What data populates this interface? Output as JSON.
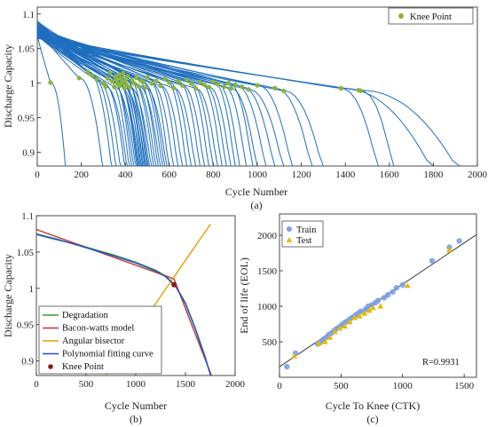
{
  "figure": {
    "panels": [
      {
        "id": "a",
        "caption": "(a)",
        "chart_data": {
          "type": "line",
          "xlabel": "Cycle Number",
          "ylabel": "Discharge Capacity",
          "xlim": [
            0,
            2000
          ],
          "ylim": [
            0.88,
            1.11
          ],
          "xticks": [
            0,
            200,
            400,
            600,
            800,
            1000,
            1200,
            1400,
            1600,
            1800,
            2000
          ],
          "yticks": [
            0.9,
            0.95,
            1,
            1.05,
            1.1
          ],
          "ytick_labels": [
            "0.9",
            "0.95",
            "1",
            "1.05",
            "1.1"
          ],
          "grid": false,
          "legend": {
            "position": "top-right",
            "entries": [
              "Knee Point"
            ]
          },
          "line_color": "#1f6fbf",
          "knee_color": "#8ab43a",
          "curves": [
            {
              "eol": 130,
              "knee": 60,
              "y0": 1.07
            },
            {
              "eol": 300,
              "knee": 190,
              "y0": 1.08
            },
            {
              "eol": 340,
              "knee": 230,
              "y0": 1.09
            },
            {
              "eol": 360,
              "knee": 250,
              "y0": 1.085
            },
            {
              "eol": 380,
              "knee": 270,
              "y0": 1.08
            },
            {
              "eol": 400,
              "knee": 300,
              "y0": 1.075
            },
            {
              "eol": 410,
              "knee": 310,
              "y0": 1.07
            },
            {
              "eol": 420,
              "knee": 320,
              "y0": 1.082
            },
            {
              "eol": 430,
              "knee": 330,
              "y0": 1.09
            },
            {
              "eol": 440,
              "knee": 340,
              "y0": 1.078
            },
            {
              "eol": 450,
              "knee": 350,
              "y0": 1.07
            },
            {
              "eol": 455,
              "knee": 355,
              "y0": 1.085
            },
            {
              "eol": 460,
              "knee": 360,
              "y0": 1.08
            },
            {
              "eol": 465,
              "knee": 365,
              "y0": 1.075
            },
            {
              "eol": 470,
              "knee": 370,
              "y0": 1.088
            },
            {
              "eol": 475,
              "knee": 375,
              "y0": 1.072
            },
            {
              "eol": 480,
              "knee": 380,
              "y0": 1.083
            },
            {
              "eol": 485,
              "knee": 385,
              "y0": 1.077
            },
            {
              "eol": 490,
              "knee": 390,
              "y0": 1.09
            },
            {
              "eol": 495,
              "knee": 395,
              "y0": 1.069
            },
            {
              "eol": 500,
              "knee": 400,
              "y0": 1.08
            },
            {
              "eol": 505,
              "knee": 405,
              "y0": 1.074
            },
            {
              "eol": 510,
              "knee": 410,
              "y0": 1.086
            },
            {
              "eol": 520,
              "knee": 420,
              "y0": 1.07
            },
            {
              "eol": 530,
              "knee": 430,
              "y0": 1.08
            },
            {
              "eol": 540,
              "knee": 440,
              "y0": 1.076
            },
            {
              "eol": 550,
              "knee": 450,
              "y0": 1.084
            },
            {
              "eol": 560,
              "knee": 460,
              "y0": 1.072
            },
            {
              "eol": 570,
              "knee": 470,
              "y0": 1.08
            },
            {
              "eol": 580,
              "knee": 480,
              "y0": 1.078
            },
            {
              "eol": 590,
              "knee": 490,
              "y0": 1.07
            },
            {
              "eol": 600,
              "knee": 500,
              "y0": 1.085
            },
            {
              "eol": 620,
              "knee": 520,
              "y0": 1.076
            },
            {
              "eol": 640,
              "knee": 540,
              "y0": 1.08
            },
            {
              "eol": 660,
              "knee": 560,
              "y0": 1.073
            },
            {
              "eol": 680,
              "knee": 580,
              "y0": 1.083
            },
            {
              "eol": 700,
              "knee": 600,
              "y0": 1.078
            },
            {
              "eol": 720,
              "knee": 620,
              "y0": 1.07
            },
            {
              "eol": 740,
              "knee": 640,
              "y0": 1.08
            },
            {
              "eol": 760,
              "knee": 660,
              "y0": 1.074
            },
            {
              "eol": 780,
              "knee": 680,
              "y0": 1.082
            },
            {
              "eol": 800,
              "knee": 700,
              "y0": 1.077
            },
            {
              "eol": 820,
              "knee": 720,
              "y0": 1.07
            },
            {
              "eol": 840,
              "knee": 740,
              "y0": 1.079
            },
            {
              "eol": 860,
              "knee": 760,
              "y0": 1.075
            },
            {
              "eol": 880,
              "knee": 780,
              "y0": 1.072
            },
            {
              "eol": 900,
              "knee": 800,
              "y0": 1.08
            },
            {
              "eol": 920,
              "knee": 820,
              "y0": 1.076
            },
            {
              "eol": 950,
              "knee": 850,
              "y0": 1.073
            },
            {
              "eol": 980,
              "knee": 870,
              "y0": 1.078
            },
            {
              "eol": 1000,
              "knee": 880,
              "y0": 1.07
            },
            {
              "eol": 1040,
              "knee": 900,
              "y0": 1.075
            },
            {
              "eol": 1080,
              "knee": 930,
              "y0": 1.072
            },
            {
              "eol": 1120,
              "knee": 960,
              "y0": 1.068
            },
            {
              "eol": 1160,
              "knee": 1000,
              "y0": 1.074
            },
            {
              "eol": 1250,
              "knee": 1080,
              "y0": 1.07
            },
            {
              "eol": 1300,
              "knee": 1120,
              "y0": 1.066
            },
            {
              "eol": 1550,
              "knee": 1380,
              "y0": 1.07
            },
            {
              "eol": 1620,
              "knee": 1470,
              "y0": 1.067
            },
            {
              "eol": 1800,
              "knee": 1380,
              "y0": 1.068
            },
            {
              "eol": 1920,
              "knee": 1460,
              "y0": 1.065
            }
          ]
        }
      },
      {
        "id": "b",
        "caption": "(b)",
        "chart_data": {
          "type": "line",
          "xlabel": "Cycle Number",
          "ylabel": "Discharge Capacity",
          "xlim": [
            0,
            2000
          ],
          "ylim": [
            0.88,
            1.1
          ],
          "xticks": [
            0,
            500,
            1000,
            1500,
            2000
          ],
          "yticks": [
            0.9,
            0.95,
            1,
            1.05,
            1.1
          ],
          "ytick_labels": [
            "0.9",
            "0.95",
            "1",
            "1.05",
            "1.1"
          ],
          "grid": false,
          "legend": {
            "position": "bottom-left"
          },
          "series": [
            {
              "name": "Degradation",
              "color": "#2ca02c",
              "x": [
                0,
                200,
                400,
                600,
                800,
                1000,
                1200,
                1300,
                1400,
                1500,
                1600,
                1700,
                1780
              ],
              "y": [
                1.074,
                1.067,
                1.061,
                1.053,
                1.045,
                1.036,
                1.025,
                1.017,
                1.004,
                0.98,
                0.945,
                0.905,
                0.868
              ]
            },
            {
              "name": "Bacon-watts model",
              "color": "#c0392b",
              "x": [
                0,
                1385,
                1790
              ],
              "y": [
                1.081,
                1.013,
                0.87
              ]
            },
            {
              "name": "Angular bisector",
              "color": "#e0a000",
              "x": [
                700,
                1750
              ],
              "y": [
                0.88,
                1.088
              ]
            },
            {
              "name": "Polynomial fitting curve",
              "color": "#1f4fd8",
              "x": [
                0,
                200,
                400,
                600,
                800,
                1000,
                1200,
                1300,
                1400,
                1500,
                1600,
                1700,
                1780
              ],
              "y": [
                1.075,
                1.068,
                1.06,
                1.052,
                1.044,
                1.035,
                1.024,
                1.016,
                1.003,
                0.979,
                0.944,
                0.904,
                0.868
              ]
            }
          ],
          "knee_point": {
            "name": "Knee Point",
            "x": 1385,
            "y": 1.005,
            "color": "#8b1a1a"
          }
        }
      },
      {
        "id": "c",
        "caption": "(c)",
        "chart_data": {
          "type": "scatter",
          "xlabel": "Cycle To Knee (CTK)",
          "ylabel": "End of life (EOL)",
          "xlim": [
            0,
            1600
          ],
          "ylim": [
            0,
            2300
          ],
          "xticks": [
            0,
            500,
            1000,
            1500
          ],
          "yticks": [
            500,
            1000,
            1500,
            2000
          ],
          "grid": false,
          "legend": {
            "position": "top-left"
          },
          "annotation": "R=0.9931",
          "fit_line": {
            "x": [
              0,
              1600
            ],
            "y": [
              148,
              2008
            ]
          },
          "series": [
            {
              "name": "Train",
              "color": "#7aa0e8",
              "marker": "circle",
              "points": [
                [
                  60,
                  150
                ],
                [
                  130,
                  340
                ],
                [
                  310,
                  470
                ],
                [
                  330,
                  490
                ],
                [
                  350,
                  520
                ],
                [
                  360,
                  540
                ],
                [
                  380,
                  560
                ],
                [
                  400,
                  600
                ],
                [
                  420,
                  620
                ],
                [
                  440,
                  650
                ],
                [
                  460,
                  680
                ],
                [
                  480,
                  700
                ],
                [
                  500,
                  730
                ],
                [
                  520,
                  760
                ],
                [
                  540,
                  780
                ],
                [
                  560,
                  800
                ],
                [
                  580,
                  830
                ],
                [
                  600,
                  850
                ],
                [
                  620,
                  880
                ],
                [
                  640,
                  900
                ],
                [
                  660,
                  930
                ],
                [
                  700,
                  960
                ],
                [
                  720,
                  1000
                ],
                [
                  750,
                  1020
                ],
                [
                  780,
                  1050
                ],
                [
                  800,
                  1080
                ],
                [
                  850,
                  1120
                ],
                [
                  880,
                  1160
                ],
                [
                  920,
                  1200
                ],
                [
                  950,
                  1260
                ],
                [
                  1000,
                  1300
                ],
                [
                  1240,
                  1640
                ],
                [
                  1380,
                  1830
                ],
                [
                  1460,
                  1920
                ]
              ]
            },
            {
              "name": "Test",
              "color": "#e8b800",
              "marker": "triangle",
              "points": [
                [
                  120,
                  300
                ],
                [
                  320,
                  480
                ],
                [
                  370,
                  500
                ],
                [
                  410,
                  560
                ],
                [
                  450,
                  640
                ],
                [
                  490,
                  690
                ],
                [
                  530,
                  720
                ],
                [
                  570,
                  780
                ],
                [
                  610,
                  840
                ],
                [
                  650,
                  860
                ],
                [
                  690,
                  900
                ],
                [
                  730,
                  940
                ],
                [
                  760,
                  980
                ],
                [
                  820,
                  1000
                ],
                [
                  1040,
                  1290
                ],
                [
                  1380,
                  1790
                ]
              ]
            }
          ]
        }
      }
    ]
  }
}
